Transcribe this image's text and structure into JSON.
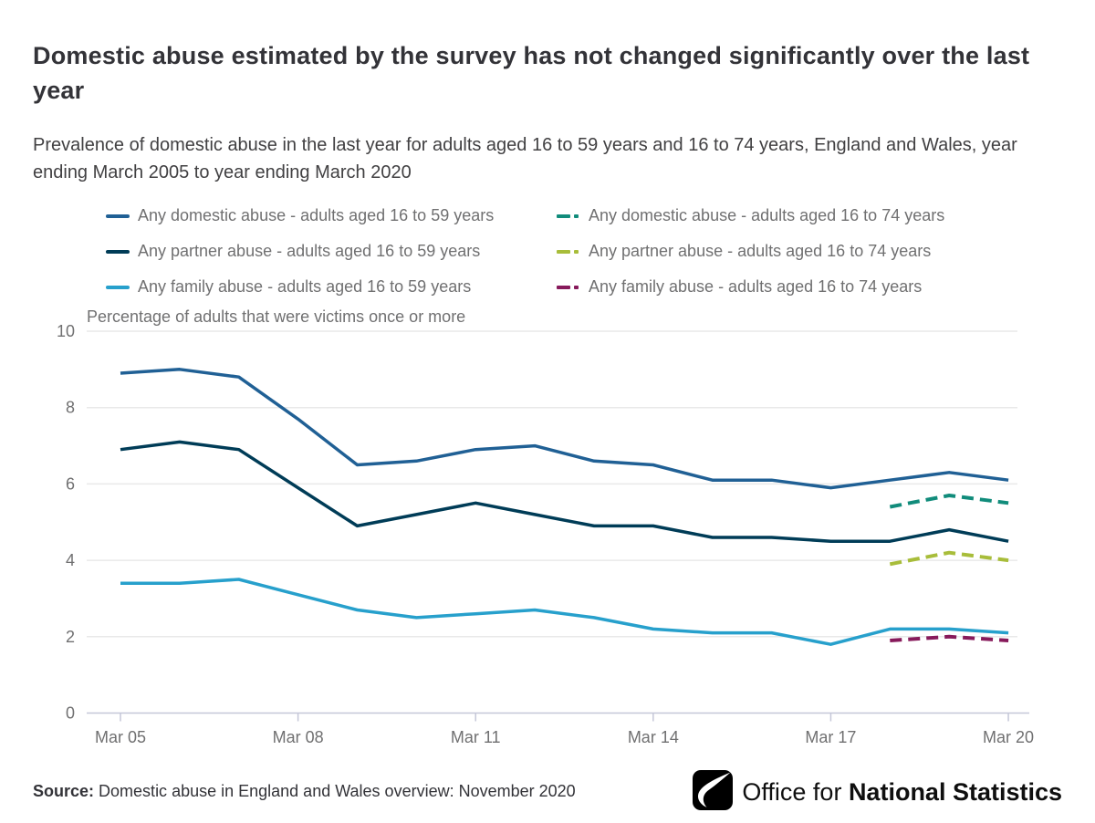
{
  "title": "Domestic abuse estimated by the survey has not changed significantly over the last year",
  "subtitle": "Prevalence of domestic abuse in the last year for adults aged 16 to 59 years and 16 to 74 years, England and Wales, year ending March 2005 to year ending March 2020",
  "source": {
    "label": "Source:",
    "text": "Domestic abuse in England and Wales overview: November 2020"
  },
  "logo": {
    "text_light": "Office for ",
    "text_bold": "National Statistics"
  },
  "colors": {
    "grid": "#e9e9e9",
    "axis": "#c5c7d8",
    "tick_text": "#707071"
  },
  "chart_data": {
    "type": "line",
    "title": "Percentage of adults that were victims once or more",
    "xlabel": "",
    "ylabel": "Percentage of adults that were victims once or more",
    "ylim": [
      0,
      10
    ],
    "y_ticks": [
      0,
      2,
      4,
      6,
      8,
      10
    ],
    "x_start_year": 2005,
    "x_end_year": 2020,
    "x_tick_years": [
      2005,
      2008,
      2011,
      2014,
      2017,
      2020
    ],
    "x_tick_labels": [
      "Mar 05",
      "Mar 08",
      "Mar 11",
      "Mar 14",
      "Mar 17",
      "Mar 20"
    ],
    "grid": true,
    "legend_position": "top",
    "series": [
      {
        "name": "Any domestic abuse - adults aged 16 to 59 years",
        "color": "#206095",
        "style": "solid",
        "start_year": 2005,
        "values": [
          8.9,
          9.0,
          8.8,
          7.7,
          6.5,
          6.6,
          6.9,
          7.0,
          6.6,
          6.5,
          6.1,
          6.1,
          5.9,
          6.1,
          6.3,
          6.1
        ]
      },
      {
        "name": "Any domestic abuse - adults aged 16 to 74 years",
        "color": "#118C7B",
        "style": "dashed",
        "start_year": 2018,
        "values": [
          5.4,
          5.7,
          5.5
        ]
      },
      {
        "name": "Any partner abuse - adults aged 16 to 59 years",
        "color": "#003C57",
        "style": "solid",
        "start_year": 2005,
        "values": [
          6.9,
          7.1,
          6.9,
          5.9,
          4.9,
          5.2,
          5.5,
          5.2,
          4.9,
          4.9,
          4.6,
          4.6,
          4.5,
          4.5,
          4.8,
          4.5
        ]
      },
      {
        "name": "Any partner abuse - adults aged 16 to 74 years",
        "color": "#A8BD3A",
        "style": "dashed",
        "start_year": 2018,
        "values": [
          3.9,
          4.2,
          4.0
        ]
      },
      {
        "name": "Any family abuse - adults aged 16 to 59 years",
        "color": "#27A0CC",
        "style": "solid",
        "start_year": 2005,
        "values": [
          3.4,
          3.4,
          3.5,
          3.1,
          2.7,
          2.5,
          2.6,
          2.7,
          2.5,
          2.2,
          2.1,
          2.1,
          1.8,
          2.2,
          2.2,
          2.1
        ]
      },
      {
        "name": "Any family abuse - adults aged 16 to 74 years",
        "color": "#871A5B",
        "style": "dashed",
        "start_year": 2018,
        "values": [
          1.9,
          2.0,
          1.9
        ]
      }
    ]
  }
}
